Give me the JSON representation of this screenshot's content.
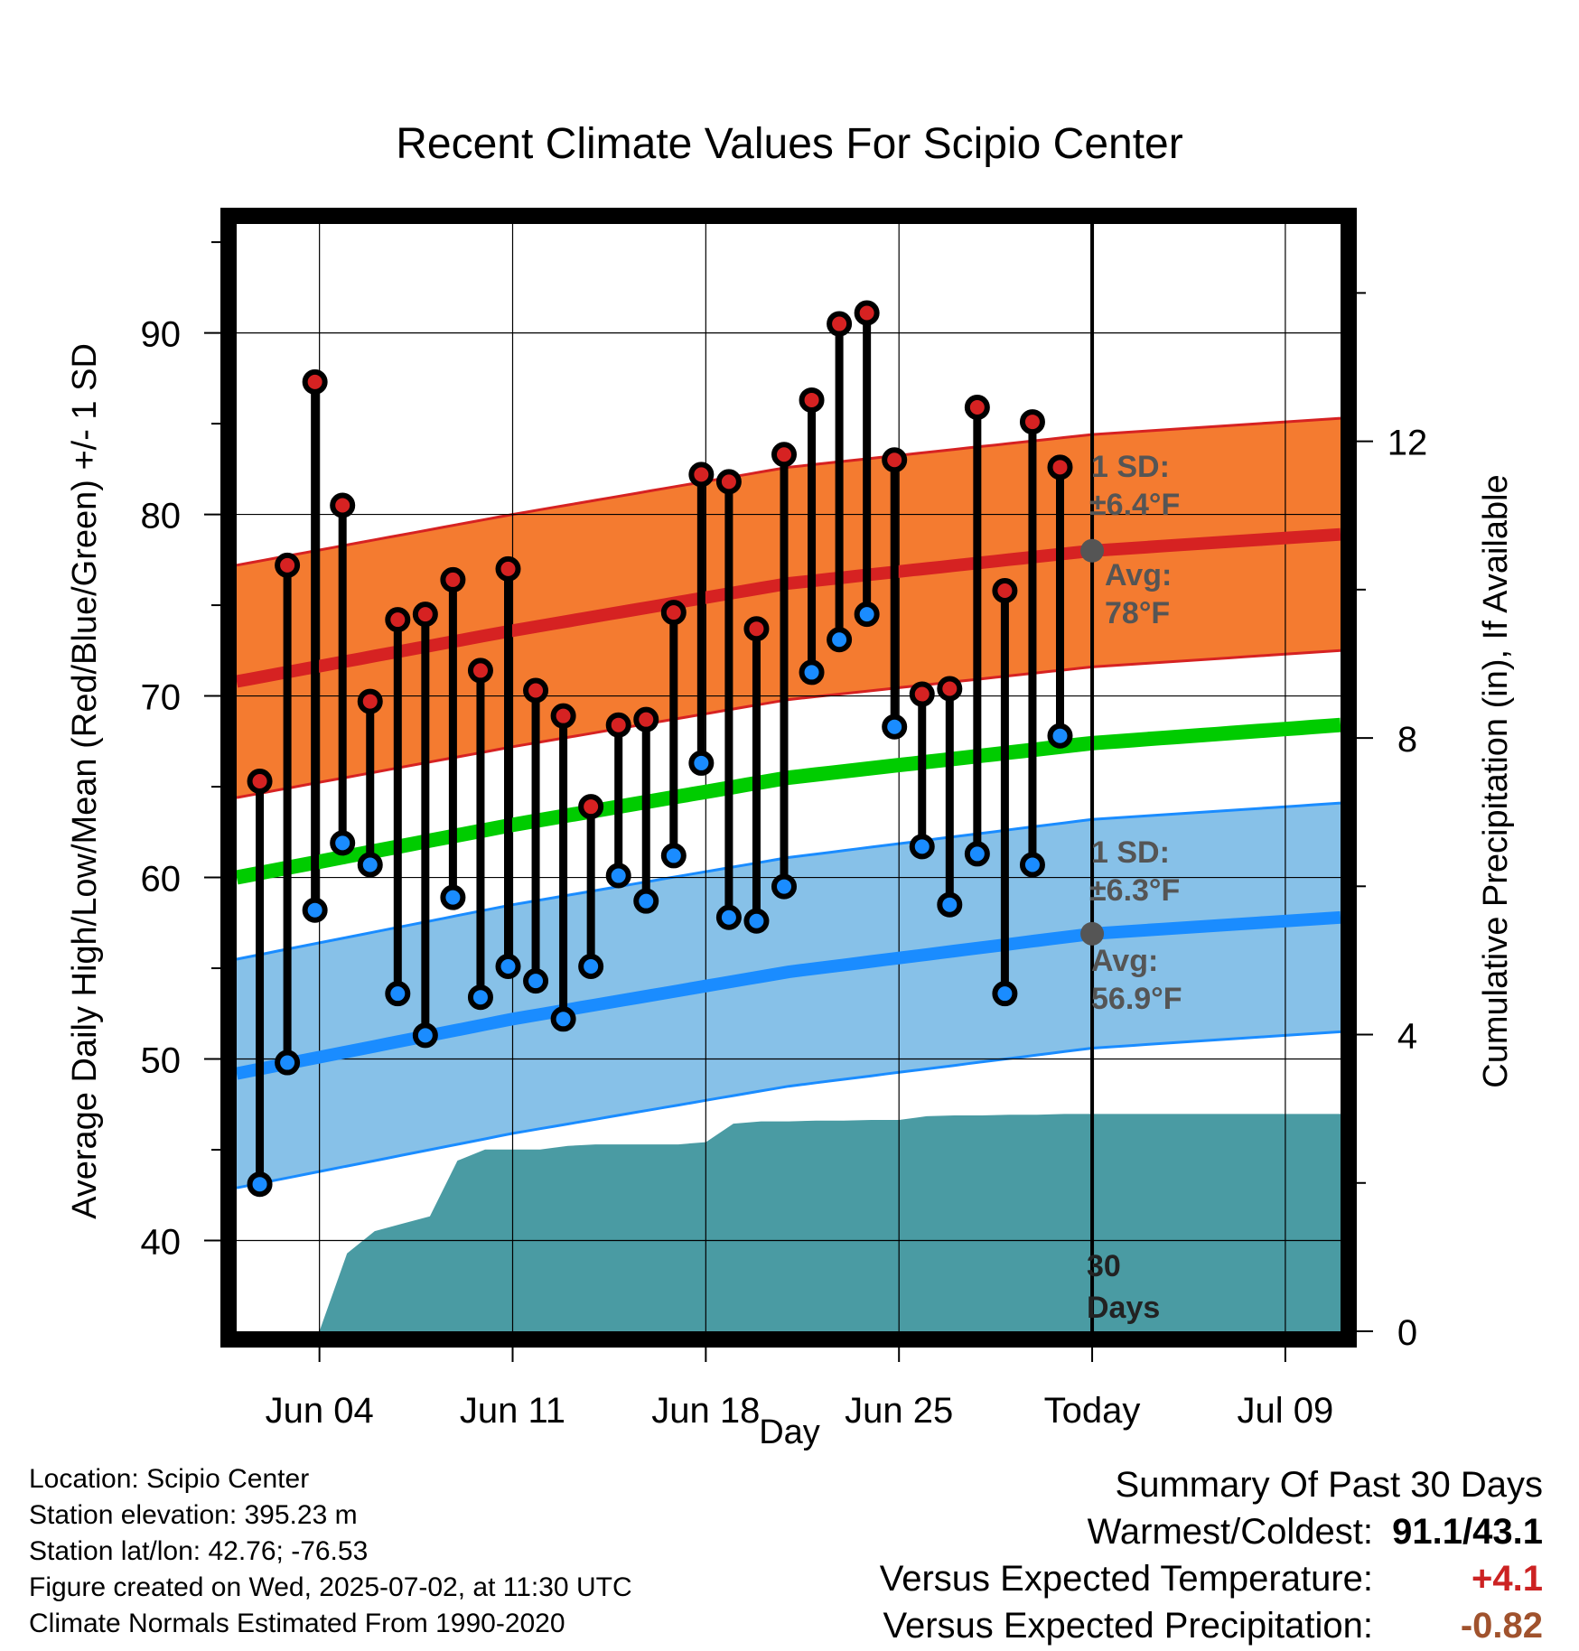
{
  "chart_data": {
    "type": "line",
    "title": "Recent Climate Values For Scipio Center",
    "xlabel": "Day",
    "ylabel_left": "Average Daily High/Low/Mean (Red/Blue/Green) +/- 1 SD",
    "ylabel_right": "Cumulative Precipitation (in), If Available",
    "x_ticks": [
      "Jun 04",
      "Jun 11",
      "Jun 18",
      "Jun 25",
      "Today",
      "Jul 09"
    ],
    "x_tick_dates": [
      "2025-06-04",
      "2025-06-11",
      "2025-06-18",
      "2025-06-25",
      "2025-07-02",
      "2025-07-09"
    ],
    "xlim": [
      "2025-06-01",
      "2025-07-11"
    ],
    "today": "2025-07-02",
    "ylim": [
      35,
      96
    ],
    "y_ticks": [
      40,
      50,
      60,
      70,
      80,
      90
    ],
    "y2lim": [
      0,
      14.93
    ],
    "y2_ticks": [
      0,
      4,
      8,
      12
    ],
    "grid": true,
    "days": [
      "2025-06-02",
      "2025-06-03",
      "2025-06-04",
      "2025-06-05",
      "2025-06-06",
      "2025-06-07",
      "2025-06-08",
      "2025-06-09",
      "2025-06-10",
      "2025-06-11",
      "2025-06-12",
      "2025-06-13",
      "2025-06-14",
      "2025-06-15",
      "2025-06-16",
      "2025-06-17",
      "2025-06-18",
      "2025-06-19",
      "2025-06-20",
      "2025-06-21",
      "2025-06-22",
      "2025-06-23",
      "2025-06-24",
      "2025-06-25",
      "2025-06-26",
      "2025-06-27",
      "2025-06-28",
      "2025-06-29",
      "2025-06-30",
      "2025-07-01"
    ],
    "daily_high": [
      65.3,
      77.2,
      87.3,
      80.5,
      69.7,
      74.2,
      74.5,
      76.4,
      71.4,
      77.0,
      70.3,
      68.9,
      63.9,
      68.4,
      68.7,
      74.6,
      82.2,
      81.8,
      73.7,
      83.3,
      86.3,
      90.5,
      91.1,
      83.0,
      70.1,
      70.4,
      85.9,
      75.8,
      85.1,
      82.6
    ],
    "daily_low": [
      43.1,
      49.8,
      58.2,
      61.9,
      60.7,
      53.6,
      51.3,
      58.9,
      53.4,
      55.1,
      54.3,
      52.2,
      55.1,
      60.1,
      58.7,
      61.2,
      66.3,
      57.8,
      57.6,
      59.5,
      71.3,
      73.1,
      74.5,
      68.3,
      61.7,
      58.5,
      61.3,
      53.6,
      60.7,
      67.8
    ],
    "normal_high": {
      "x": [
        "2025-06-01",
        "2025-06-11",
        "2025-06-21",
        "2025-07-02",
        "2025-07-11"
      ],
      "mean": [
        70.8,
        73.6,
        76.2,
        78.0,
        78.9
      ],
      "sd": 6.4
    },
    "normal_low": {
      "x": [
        "2025-06-01",
        "2025-06-11",
        "2025-06-21",
        "2025-07-02",
        "2025-07-11"
      ],
      "mean": [
        49.2,
        52.2,
        54.8,
        56.9,
        57.8
      ],
      "sd": 6.3
    },
    "normal_mean": {
      "x": [
        "2025-06-01",
        "2025-06-11",
        "2025-06-21",
        "2025-07-02",
        "2025-07-11"
      ],
      "values": [
        60.0,
        62.9,
        65.5,
        67.4,
        68.4
      ]
    },
    "precip_cumulative": {
      "x": [
        "2025-06-04",
        "2025-06-05",
        "2025-06-06",
        "2025-06-07",
        "2025-06-08",
        "2025-06-09",
        "2025-06-10",
        "2025-06-11",
        "2025-06-12",
        "2025-06-13",
        "2025-06-14",
        "2025-06-15",
        "2025-06-16",
        "2025-06-17",
        "2025-06-18",
        "2025-06-19",
        "2025-06-20",
        "2025-06-21",
        "2025-06-22",
        "2025-06-23",
        "2025-06-24",
        "2025-06-25",
        "2025-06-26",
        "2025-06-27",
        "2025-06-28",
        "2025-06-29",
        "2025-06-30",
        "2025-07-01",
        "2025-07-02",
        "2025-07-11"
      ],
      "values": [
        0.0,
        1.05,
        1.35,
        1.45,
        1.55,
        2.3,
        2.45,
        2.45,
        2.45,
        2.5,
        2.52,
        2.52,
        2.52,
        2.52,
        2.55,
        2.8,
        2.83,
        2.83,
        2.84,
        2.84,
        2.85,
        2.85,
        2.9,
        2.91,
        2.91,
        2.92,
        2.92,
        2.93,
        2.93,
        2.93
      ]
    },
    "colors": {
      "high_band": "#f47b30",
      "high_line": "#d62222",
      "low_band": "#87c1e8",
      "low_line": "#1a8cff",
      "mean_line": "#00cc00",
      "precip": "#4a9ba3",
      "high_dot": "#d62222",
      "low_dot": "#1a8cff"
    }
  },
  "annotations": {
    "high_sd_label": "1 SD:",
    "high_sd_value": "±6.4°F",
    "high_avg_label": "Avg:",
    "high_avg_value": "78°F",
    "low_sd_label": "1 SD:",
    "low_sd_value": "±6.3°F",
    "low_avg_label": "Avg:",
    "low_avg_value": "56.9°F",
    "days_label_1": "30",
    "days_label_2": "Days"
  },
  "footer": {
    "location": "Location: Scipio Center",
    "elevation": "Station elevation: 395.23 m",
    "latlon": "Station lat/lon: 42.76; -76.53",
    "created": "Figure created on Wed, 2025-07-02, at 11:30 UTC",
    "normals": "Climate Normals Estimated From 1990-2020"
  },
  "summary": {
    "title": "Summary Of Past 30 Days",
    "warmest_label": "Warmest/Coldest:",
    "warmest_value": "91.1/43.1",
    "temp_label": "Versus Expected Temperature:",
    "temp_value": "+4.1",
    "temp_color": "#cc2222",
    "precip_label": "Versus Expected Precipitation:",
    "precip_value": "-0.82",
    "precip_color": "#a0522d"
  }
}
